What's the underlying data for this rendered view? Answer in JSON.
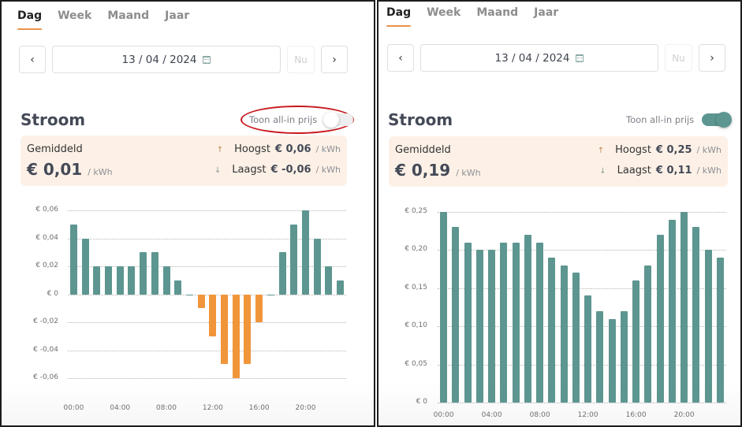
{
  "left_panel": {
    "tabs": [
      {
        "label": "Dag",
        "active": true
      },
      {
        "label": "Week",
        "active": false
      },
      {
        "label": "Maand",
        "active": false
      },
      {
        "label": "Jaar",
        "active": false
      }
    ],
    "date": "13 / 04 / 2024",
    "now_label": "Nu",
    "prev_icon": "‹",
    "next_icon": "›",
    "section_title": "Stroom",
    "toggle_label": "Toon all-in prijs",
    "toggle_on": false,
    "summary": {
      "avg_label": "Gemiddeld",
      "avg_value": "€ 0,01",
      "unit": "/ kWh",
      "high_label": "Hoogst",
      "high_value": "€ 0,06",
      "low_label": "Laagst",
      "low_value": "€ -0,06",
      "up_arrow": "↑",
      "down_arrow": "↓"
    }
  },
  "right_panel": {
    "tabs": [
      {
        "label": "Dag",
        "active": true
      },
      {
        "label": "Week",
        "active": false
      },
      {
        "label": "Maand",
        "active": false
      },
      {
        "label": "Jaar",
        "active": false
      }
    ],
    "date": "13 / 04 / 2024",
    "now_label": "Nu",
    "prev_icon": "‹",
    "next_icon": "›",
    "section_title": "Stroom",
    "toggle_label": "Toon all-in prijs",
    "toggle_on": true,
    "summary": {
      "avg_label": "Gemiddeld",
      "avg_value": "€ 0,19",
      "unit": "/ kWh",
      "high_label": "Hoogst",
      "high_value": "€ 0,25",
      "low_label": "Laagst",
      "low_value": "€ 0,11",
      "up_arrow": "↑",
      "down_arrow": "↓"
    }
  },
  "colors": {
    "positive_bar": "#5d9690",
    "negative_bar": "#f0953a",
    "accent": "#e8944a",
    "summary_bg": "#fdf1e7",
    "highlight_ellipse": "#c8191e"
  },
  "chart_data": [
    {
      "type": "bar",
      "title": "Stroom (zonder all-in prijs)",
      "xlabel": "",
      "ylabel": "€ / kWh",
      "categories": [
        "00:00",
        "01:00",
        "02:00",
        "03:00",
        "04:00",
        "05:00",
        "06:00",
        "07:00",
        "08:00",
        "09:00",
        "10:00",
        "11:00",
        "12:00",
        "13:00",
        "14:00",
        "15:00",
        "16:00",
        "17:00",
        "18:00",
        "19:00",
        "20:00",
        "21:00",
        "22:00",
        "23:00"
      ],
      "values": [
        0.05,
        0.04,
        0.02,
        0.02,
        0.02,
        0.02,
        0.03,
        0.03,
        0.02,
        0.01,
        0,
        -0.01,
        -0.03,
        -0.05,
        -0.06,
        -0.05,
        -0.02,
        0,
        0.03,
        0.05,
        0.06,
        0.04,
        0.02,
        0.01
      ],
      "x_tick_labels": [
        "00:00",
        "04:00",
        "08:00",
        "12:00",
        "16:00",
        "20:00"
      ],
      "y_ticks": [
        0.06,
        0.04,
        0.02,
        0,
        -0.02,
        -0.04,
        -0.06
      ],
      "y_tick_labels": [
        "€ 0,06",
        "€ 0,04",
        "€ 0,02",
        "€ 0",
        "€ -0,02",
        "€ -0,04",
        "€ -0,06"
      ],
      "ylim": [
        -0.06,
        0.06
      ],
      "grid": true
    },
    {
      "type": "bar",
      "title": "Stroom (all-in prijs)",
      "xlabel": "",
      "ylabel": "€ / kWh",
      "categories": [
        "00:00",
        "01:00",
        "02:00",
        "03:00",
        "04:00",
        "05:00",
        "06:00",
        "07:00",
        "08:00",
        "09:00",
        "10:00",
        "11:00",
        "12:00",
        "13:00",
        "14:00",
        "15:00",
        "16:00",
        "17:00",
        "18:00",
        "19:00",
        "20:00",
        "21:00",
        "22:00",
        "23:00"
      ],
      "values": [
        0.25,
        0.23,
        0.21,
        0.2,
        0.2,
        0.21,
        0.21,
        0.22,
        0.21,
        0.19,
        0.18,
        0.17,
        0.14,
        0.12,
        0.11,
        0.12,
        0.16,
        0.18,
        0.22,
        0.24,
        0.25,
        0.23,
        0.2,
        0.19
      ],
      "x_tick_labels": [
        "00:00",
        "04:00",
        "08:00",
        "12:00",
        "16:00",
        "20:00"
      ],
      "y_ticks": [
        0.25,
        0.2,
        0.15,
        0.1,
        0.05,
        0
      ],
      "y_tick_labels": [
        "€ 0,25",
        "€ 0,20",
        "€ 0,15",
        "€ 0,10",
        "€ 0,05",
        "€ 0"
      ],
      "ylim": [
        0,
        0.25
      ],
      "grid": true
    }
  ]
}
